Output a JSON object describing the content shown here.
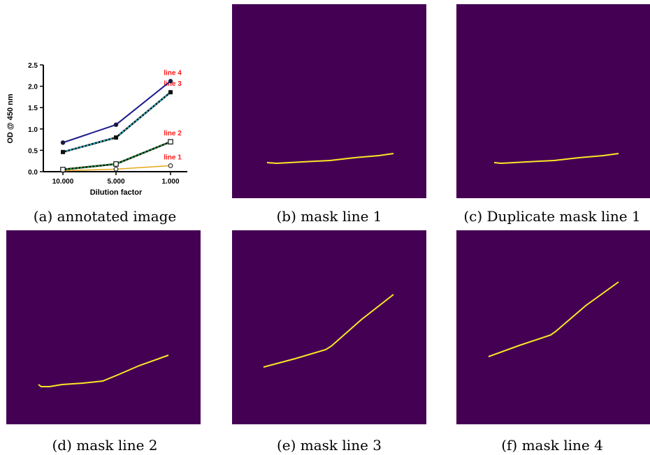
{
  "figure": {
    "captions": {
      "a": "(a) annotated image",
      "b": "(b) mask line 1",
      "c": "(c) Duplicate mask line 1",
      "d": "(d) mask line 2",
      "e": "(e) mask line 3",
      "f": "(f) mask line 4"
    }
  },
  "colors": {
    "mask_background": "#440154",
    "mask_line": "#FDE725",
    "line1": "#E6A817",
    "line2": "#1FA33A",
    "line3": "#27C4D8",
    "line4": "#1A1A8C",
    "annotation": "#FF1A1A"
  },
  "chart_data": {
    "type": "line",
    "title": "",
    "xlabel": "Dilution factor",
    "ylabel": "OD @ 450 nm",
    "categories": [
      "10.000",
      "5.000",
      "1.000"
    ],
    "ylim": [
      0,
      2.5
    ],
    "yticks": [
      "0.0",
      "0.5",
      "1.0",
      "1.5",
      "2.0",
      "2.5"
    ],
    "grid": false,
    "series": [
      {
        "name": "line 1",
        "values": [
          0.02,
          0.06,
          0.14
        ]
      },
      {
        "name": "line 2",
        "values": [
          0.05,
          0.18,
          0.7
        ]
      },
      {
        "name": "line 3",
        "values": [
          0.46,
          0.8,
          1.86
        ]
      },
      {
        "name": "line 4",
        "values": [
          0.68,
          1.1,
          2.12
        ]
      }
    ]
  },
  "masks": [
    {
      "id": "b",
      "label": "mask line 1"
    },
    {
      "id": "c",
      "label": "Duplicate mask line 1"
    },
    {
      "id": "d",
      "label": "mask line 2"
    },
    {
      "id": "e",
      "label": "mask line 3"
    },
    {
      "id": "f",
      "label": "mask line 4"
    }
  ]
}
